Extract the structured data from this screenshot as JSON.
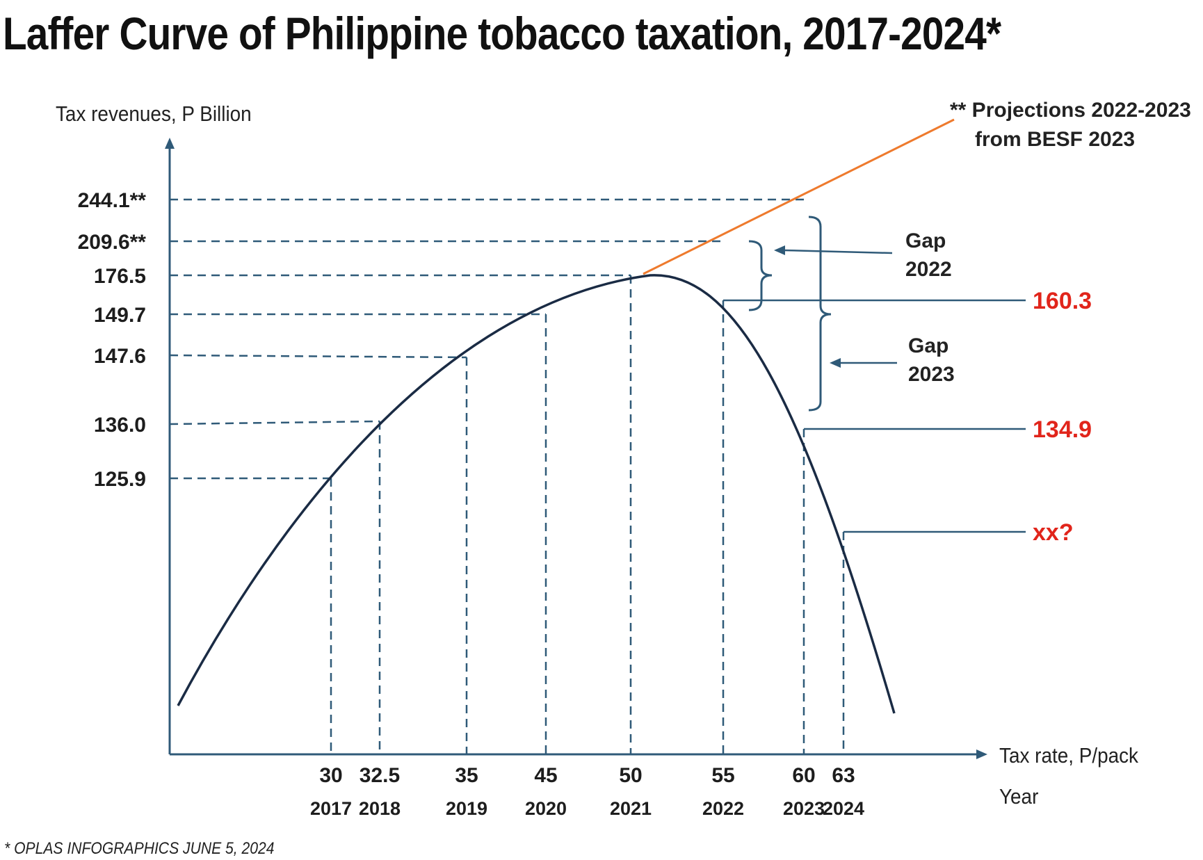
{
  "chart_data": {
    "type": "line",
    "title": "Laffer Curve of Philippine tobacco taxation, 2017-2024*",
    "xlabel": "Tax rate, P/pack",
    "xlabel2": "Year",
    "ylabel": "Tax revenues, P Billion",
    "footnote": "* OPLAS INFOGRAPHICS JUNE 5, 2024",
    "points": [
      {
        "rate": "30",
        "year": "2017",
        "revenue": "125.9",
        "y": 125.9
      },
      {
        "rate": "32.5",
        "year": "2018",
        "revenue": "136.0",
        "y": 136.0
      },
      {
        "rate": "35",
        "year": "2019",
        "revenue": "147.6",
        "y": 147.6
      },
      {
        "rate": "45",
        "year": "2020",
        "revenue": "149.7",
        "y": 149.7
      },
      {
        "rate": "50",
        "year": "2021",
        "revenue": "176.5",
        "y": 176.5
      },
      {
        "rate": "55",
        "year": "2022",
        "revenue": "160.3",
        "y": 160.3
      },
      {
        "rate": "60",
        "year": "2023",
        "revenue": "134.9",
        "y": 134.9
      },
      {
        "rate": "63",
        "year": "2024",
        "revenue": "xx?",
        "y": null
      }
    ],
    "projections": [
      {
        "year": "2022",
        "label": "209.6**",
        "value": 209.6
      },
      {
        "year": "2023",
        "label": "244.1**",
        "value": 244.1
      }
    ],
    "annotations": {
      "projection_note_line1": "** Projections 2022-2023",
      "projection_note_line2": "from BESF 2023",
      "gap_2022_word": "Gap",
      "gap_2022_year": "2022",
      "gap_2023_word": "Gap",
      "gap_2023_year": "2023"
    },
    "colors": {
      "curve": "#1a2b44",
      "guides": "#2f5a78",
      "projection": "#ee7a2d",
      "peak_label": "#2b7bc5",
      "actual_label": "#e1251b"
    }
  }
}
